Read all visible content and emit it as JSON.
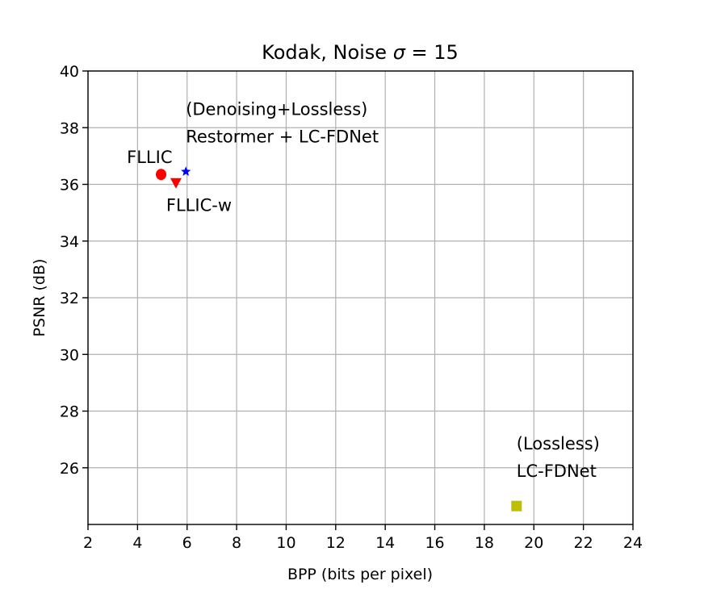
{
  "chart_data": {
    "type": "scatter",
    "title": "Kodak, Noise σ = 15",
    "xlabel": "BPP (bits per pixel)",
    "ylabel": "PSNR (dB)",
    "xlim": [
      2,
      24
    ],
    "ylim": [
      24,
      40
    ],
    "xticks": [
      2,
      4,
      6,
      8,
      10,
      12,
      14,
      16,
      18,
      20,
      22,
      24
    ],
    "yticks": [
      26,
      28,
      30,
      32,
      34,
      36,
      38,
      40
    ],
    "grid": true,
    "points": [
      {
        "label": [
          "FLLIC"
        ],
        "x": 4.95,
        "y": 36.35,
        "marker": "circle",
        "color": "#ff0000",
        "label_pos": "upper-left"
      },
      {
        "label": [
          "FLLIC-w"
        ],
        "x": 5.55,
        "y": 36.05,
        "marker": "triangle-down",
        "color": "#ff0000",
        "label_pos": "below"
      },
      {
        "label": [
          "(Denoising+Lossless)",
          "Restormer + LC-FDNet"
        ],
        "x": 5.95,
        "y": 36.45,
        "marker": "star",
        "color": "#0000ff",
        "label_pos": "above"
      },
      {
        "label": [
          "(Lossless)",
          "LC-FDNet"
        ],
        "x": 19.3,
        "y": 24.65,
        "marker": "square",
        "color": "#bfbf00",
        "label_pos": "above"
      }
    ]
  }
}
